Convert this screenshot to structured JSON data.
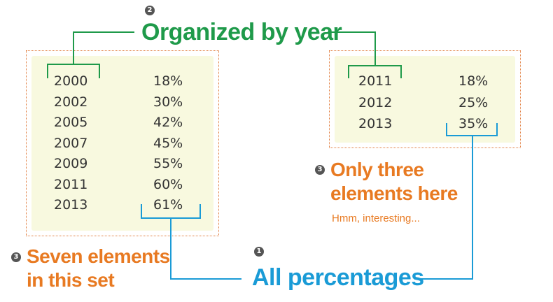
{
  "left_table": {
    "rows": [
      {
        "year": "2000",
        "percent": "18%"
      },
      {
        "year": "2002",
        "percent": "30%"
      },
      {
        "year": "2005",
        "percent": "42%"
      },
      {
        "year": "2007",
        "percent": "45%"
      },
      {
        "year": "2009",
        "percent": "55%"
      },
      {
        "year": "2011",
        "percent": "60%"
      },
      {
        "year": "2013",
        "percent": "61%"
      }
    ]
  },
  "right_table": {
    "rows": [
      {
        "year": "2011",
        "percent": "18%"
      },
      {
        "year": "2012",
        "percent": "25%"
      },
      {
        "year": "2013",
        "percent": "35%"
      }
    ]
  },
  "labels": {
    "organized": {
      "number": "2",
      "text": "Organized by year"
    },
    "all_percentages": {
      "number": "1",
      "text": "All percentages"
    },
    "seven": {
      "number": "3",
      "line1": "Seven elements",
      "line2": "in this set"
    },
    "three": {
      "number": "3",
      "line1": "Only three",
      "line2": "elements here",
      "note": "Hmm, interesting..."
    }
  },
  "colors": {
    "green": "#1f9a4a",
    "blue": "#1a9bd6",
    "orange": "#e87a22",
    "paper": "#f8f9df",
    "border": "#e07a3a"
  }
}
